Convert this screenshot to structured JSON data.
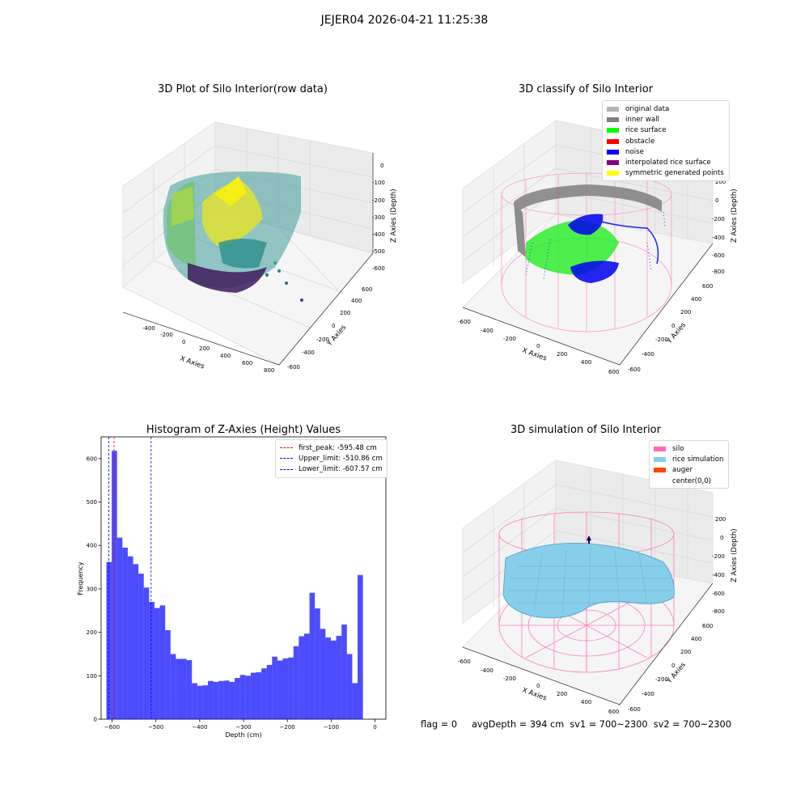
{
  "figure": {
    "title": "JEJER04 2026-04-21 11:25:38",
    "footer": "flag = 0     avgDepth = 394 cm  sv1 = 700~2300  sv2 = 700~2300"
  },
  "panels": {
    "raw": {
      "title": "3D Plot of Silo Interior(row data)",
      "xlabel": "X Axies",
      "ylabel": "Y Axies",
      "zlabel": "Z Axies (Depth)",
      "xticks": [
        "-400",
        "-200",
        "0",
        "200",
        "400",
        "600",
        "800"
      ],
      "yticks": [
        "-600",
        "-400",
        "-200",
        "0",
        "200",
        "400",
        "600"
      ],
      "zticks": [
        "0",
        "-100",
        "-200",
        "-300",
        "-400",
        "-500",
        "-600"
      ]
    },
    "classify": {
      "title": "3D classify of Silo Interior",
      "xlabel": "X Axies",
      "ylabel": "Y Axies",
      "zlabel": "Z Axies (Depth)",
      "xticks": [
        "-600",
        "-400",
        "-200",
        "0",
        "200",
        "400",
        "600"
      ],
      "yticks": [
        "-600",
        "-400",
        "-200",
        "0",
        "200",
        "400",
        "600"
      ],
      "zticks": [
        "200",
        "0",
        "-200",
        "-400",
        "-600",
        "-800"
      ],
      "legend": [
        {
          "label": "original data",
          "color": "#b3b3b3"
        },
        {
          "label": "inner wall",
          "color": "#808080"
        },
        {
          "label": "rice surface",
          "color": "#00ff00"
        },
        {
          "label": "obstacle",
          "color": "#ff0000"
        },
        {
          "label": "noise",
          "color": "#0000ff"
        },
        {
          "label": "interpolated rice surface",
          "color": "#800080"
        },
        {
          "label": "symmetric generated points",
          "color": "#ffff00"
        }
      ]
    },
    "simulation": {
      "title": "3D simulation of Silo Interior",
      "xlabel": "X Axies",
      "ylabel": "Y Axies",
      "zlabel": "Z Axies (Depth)",
      "xticks": [
        "-600",
        "-400",
        "-200",
        "0",
        "200",
        "400",
        "600"
      ],
      "yticks": [
        "-600",
        "-400",
        "-200",
        "0",
        "200",
        "400",
        "600"
      ],
      "zticks": [
        "200",
        "0",
        "-200",
        "-400",
        "-600",
        "-800"
      ],
      "legend": [
        {
          "label": "silo",
          "color": "#ff69b4"
        },
        {
          "label": "rice simulation",
          "color": "#87ceeb"
        },
        {
          "label": "auger",
          "color": "#ff4500"
        },
        {
          "label": "center(0,0)",
          "color": "#ffffff"
        }
      ]
    }
  },
  "chart_data": [
    {
      "type": "bar",
      "title": "Histogram of Z-Axies (Height) Values",
      "xlabel": "Depth (cm)",
      "ylabel": "Frequency",
      "xlim": [
        -625,
        25
      ],
      "ylim": [
        0,
        650
      ],
      "xticks": [
        -600,
        -500,
        -400,
        -300,
        -200,
        -100,
        0
      ],
      "yticks": [
        0,
        100,
        200,
        300,
        400,
        500,
        600
      ],
      "bin_edges_start": -613,
      "bin_width": 12.2,
      "values": [
        362,
        618,
        418,
        395,
        375,
        357,
        335,
        303,
        270,
        256,
        262,
        205,
        150,
        139,
        139,
        136,
        83,
        77,
        78,
        88,
        86,
        88,
        89,
        86,
        95,
        102,
        100,
        107,
        108,
        117,
        125,
        144,
        135,
        140,
        142,
        168,
        191,
        197,
        291,
        255,
        208,
        188,
        181,
        192,
        218,
        150,
        83,
        332
      ],
      "color": "#0000ff",
      "alpha": 0.7,
      "legend_position": "top-right",
      "lines": [
        {
          "label": "first_peak: -595.48 cm",
          "x": -595.48,
          "color": "#ff0000"
        },
        {
          "label": "Upper_limit: -510.86 cm",
          "x": -510.86,
          "color": "#0000ff"
        },
        {
          "label": "Lower_limit: -607.57 cm",
          "x": -607.57,
          "color": "#0000ff"
        }
      ]
    }
  ]
}
